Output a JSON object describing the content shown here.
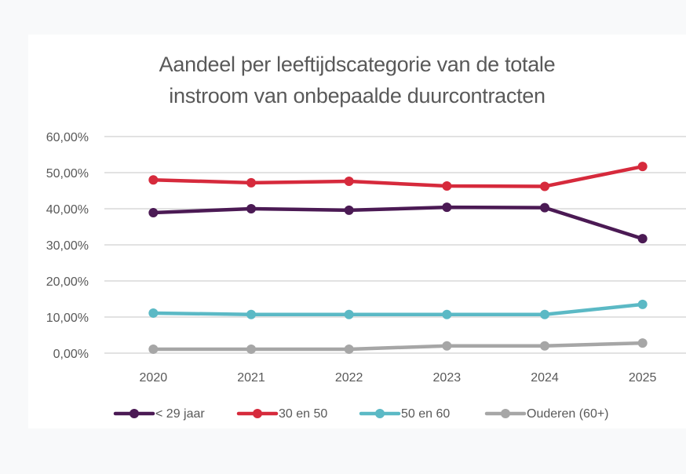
{
  "chart_data": {
    "type": "line",
    "title": "Aandeel per leeftijdscategorie van de totale instroom van onbepaalde duurcontracten",
    "title_lines": [
      "Aandeel per leeftijdscategorie van de totale",
      "instroom van onbepaalde duurcontracten"
    ],
    "xlabel": "",
    "ylabel": "",
    "categories": [
      "2020",
      "2021",
      "2022",
      "2023",
      "2024",
      "2025"
    ],
    "ylim": [
      0,
      0.6
    ],
    "yticks": [
      0,
      0.1,
      0.2,
      0.3,
      0.4,
      0.5,
      0.6
    ],
    "ytick_labels": [
      "0,00%",
      "10,00%",
      "20,00%",
      "30,00%",
      "40,00%",
      "50,00%",
      "60,00%"
    ],
    "grid": true,
    "legend_position": "bottom",
    "series": [
      {
        "name": "< 29 jaar",
        "color": "#4b1a54",
        "values": [
          0.389,
          0.4,
          0.396,
          0.404,
          0.403,
          0.317
        ]
      },
      {
        "name": "30 en 50",
        "color": "#d62a3c",
        "values": [
          0.48,
          0.472,
          0.476,
          0.463,
          0.462,
          0.517
        ]
      },
      {
        "name": "50 en 60",
        "color": "#5bb9c5",
        "values": [
          0.111,
          0.107,
          0.107,
          0.107,
          0.107,
          0.135
        ]
      },
      {
        "name": "Ouderen (60+)",
        "color": "#a6a6a6",
        "values": [
          0.011,
          0.011,
          0.011,
          0.02,
          0.02,
          0.028
        ]
      }
    ]
  }
}
